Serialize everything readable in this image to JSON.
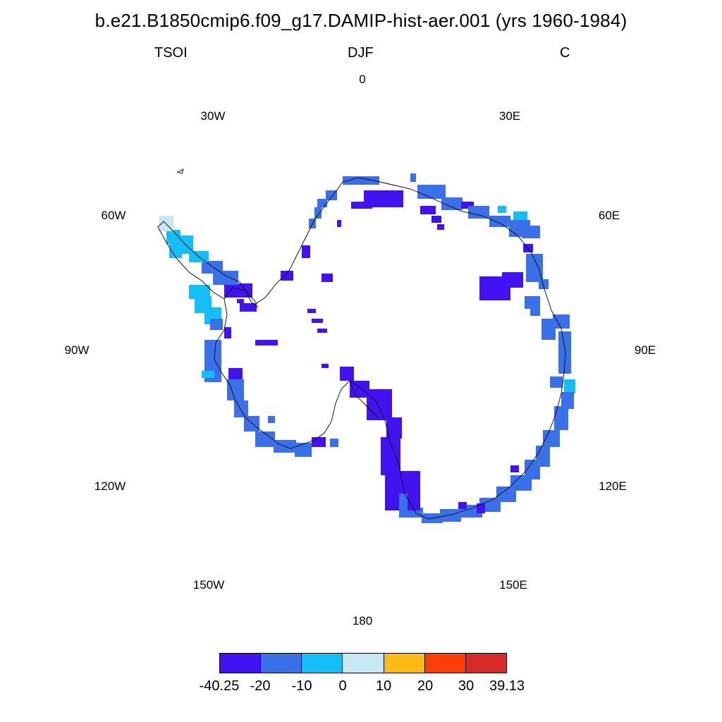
{
  "header": {
    "title": "b.e21.B1850cmip6.f09_g17.DAMIP-hist-aer.001 (yrs 1960-1984)",
    "variable": "TSOI",
    "season": "DJF",
    "units": "C"
  },
  "map": {
    "projection": "south-polar-stereographic",
    "longitude_labels": [
      "0",
      "30E",
      "60E",
      "90E",
      "120E",
      "150E",
      "180",
      "150W",
      "120W",
      "90W",
      "60W",
      "30W"
    ]
  },
  "colorbar": {
    "labels": [
      "-40.25",
      "-20",
      "-10",
      "0",
      "10",
      "20",
      "30",
      "39.13"
    ],
    "colors": [
      "#4212f0",
      "#3a70e8",
      "#14bef6",
      "#c8e8f6",
      "#ffbb14",
      "#ff3d06",
      "#d92a2a"
    ]
  },
  "colors": {
    "background": "#ffffff",
    "coastline": "#000000"
  }
}
